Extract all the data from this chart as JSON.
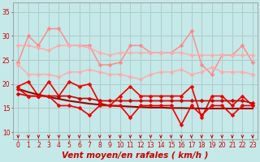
{
  "background_color": "#c5e8e8",
  "grid_color": "#b0cccc",
  "x_labels": [
    "0",
    "1",
    "2",
    "3",
    "4",
    "5",
    "6",
    "7",
    "8",
    "9",
    "10",
    "11",
    "12",
    "13",
    "14",
    "15",
    "16",
    "17",
    "18",
    "19",
    "20",
    "21",
    "22",
    "23"
  ],
  "xlabel": "Vent moyen/en rafales ( km/h )",
  "ylabel_ticks": [
    10,
    15,
    20,
    25,
    30,
    35
  ],
  "ylim": [
    8.5,
    37
  ],
  "xlim": [
    -0.5,
    23.5
  ],
  "series": [
    {
      "name": "rafales_jagged",
      "color": "#ff8888",
      "linewidth": 1.0,
      "marker": "D",
      "markersize": 2.5,
      "values": [
        24.5,
        30.0,
        28.0,
        31.5,
        31.5,
        28.0,
        28.0,
        28.0,
        24.0,
        24.0,
        24.5,
        28.0,
        28.0,
        26.5,
        26.5,
        26.5,
        28.0,
        31.0,
        24.0,
        22.0,
        26.0,
        26.0,
        28.0,
        24.5
      ]
    },
    {
      "name": "rafales_smooth_top",
      "color": "#ffaaaa",
      "linewidth": 1.0,
      "marker": "D",
      "markersize": 2.5,
      "values": [
        28.0,
        28.0,
        27.5,
        27.0,
        28.0,
        28.0,
        28.0,
        27.5,
        26.5,
        26.0,
        26.5,
        26.5,
        26.5,
        26.5,
        26.5,
        26.5,
        26.5,
        26.0,
        26.0,
        26.0,
        26.0,
        26.0,
        26.0,
        26.0
      ]
    },
    {
      "name": "rafales_smooth_bot",
      "color": "#ffaaaa",
      "linewidth": 1.0,
      "marker": "D",
      "markersize": 2.5,
      "values": [
        24.0,
        22.0,
        22.0,
        22.0,
        21.5,
        22.5,
        22.5,
        23.0,
        22.5,
        22.0,
        22.0,
        21.5,
        21.0,
        22.0,
        22.5,
        22.5,
        23.0,
        22.0,
        22.5,
        23.5,
        22.5,
        22.5,
        22.5,
        22.0
      ]
    },
    {
      "name": "vent_jagged",
      "color": "#ee0000",
      "linewidth": 1.2,
      "marker": "D",
      "markersize": 2.5,
      "values": [
        19.5,
        20.5,
        17.5,
        20.5,
        17.5,
        20.5,
        19.5,
        20.0,
        16.0,
        15.5,
        17.5,
        19.5,
        17.5,
        17.5,
        17.5,
        17.5,
        17.5,
        19.5,
        13.0,
        17.5,
        17.5,
        15.5,
        17.5,
        15.5
      ]
    },
    {
      "name": "vent_flat_top",
      "color": "#cc0000",
      "linewidth": 1.2,
      "marker": "D",
      "markersize": 2.5,
      "values": [
        18.0,
        17.5,
        17.5,
        17.5,
        17.5,
        17.5,
        17.0,
        17.0,
        16.5,
        16.5,
        16.5,
        16.5,
        16.5,
        16.5,
        16.5,
        16.5,
        16.5,
        16.5,
        16.5,
        16.5,
        16.5,
        16.5,
        16.5,
        16.0
      ]
    },
    {
      "name": "vent_trend_line",
      "color": "#990000",
      "linewidth": 1.5,
      "marker": null,
      "markersize": 0,
      "values": [
        19.0,
        18.3,
        17.8,
        17.3,
        16.9,
        16.5,
        16.2,
        15.9,
        15.7,
        15.5,
        15.4,
        15.3,
        15.2,
        15.1,
        15.1,
        15.0,
        15.0,
        14.95,
        14.9,
        14.9,
        14.9,
        14.9,
        14.9,
        14.9
      ]
    },
    {
      "name": "vent_low_jagged",
      "color": "#ee0000",
      "linewidth": 1.2,
      "marker": "D",
      "markersize": 2.5,
      "values": [
        19.0,
        17.5,
        17.5,
        17.5,
        15.5,
        15.5,
        15.0,
        13.5,
        15.5,
        15.5,
        15.5,
        13.0,
        15.5,
        15.5,
        15.5,
        15.5,
        11.5,
        15.5,
        13.5,
        15.5,
        15.5,
        13.5,
        15.5,
        15.5
      ]
    }
  ],
  "arrow_color": "#cc0000",
  "tick_fontsize": 5.5,
  "xlabel_fontsize": 7.5
}
